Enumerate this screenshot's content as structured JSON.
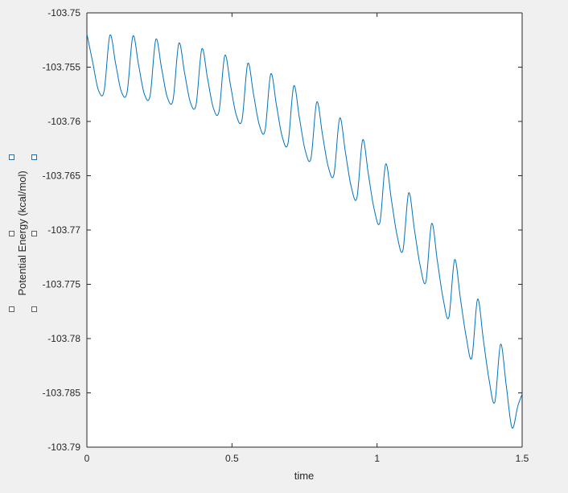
{
  "chart_data": {
    "type": "line",
    "x_label": "time",
    "y_label": "Potential Energy (kcal/mol)",
    "x": [
      0,
      0.0198,
      0.0396,
      0.0594,
      0.0792,
      0.099,
      0.1188,
      0.1386,
      0.1584,
      0.1782,
      0.198,
      0.2178,
      0.2376,
      0.2574,
      0.2772,
      0.297,
      0.3168,
      0.3366,
      0.3564,
      0.3762,
      0.396,
      0.4158,
      0.4356,
      0.4554,
      0.4752,
      0.495,
      0.5148,
      0.5346,
      0.5544,
      0.5742,
      0.594,
      0.6138,
      0.6336,
      0.6534,
      0.6732,
      0.693,
      0.7128,
      0.7326,
      0.7524,
      0.7722,
      0.792,
      0.8118,
      0.8316,
      0.8514,
      0.8712,
      0.891,
      0.9108,
      0.9306,
      0.9504,
      0.9702,
      0.99,
      1.0098,
      1.0296,
      1.0494,
      1.0692,
      1.089,
      1.1088,
      1.1286,
      1.1484,
      1.1682,
      1.188,
      1.2078,
      1.2276,
      1.2474,
      1.2672,
      1.287,
      1.3068,
      1.3266,
      1.3464,
      1.3662,
      1.386,
      1.4058,
      1.4256,
      1.4454,
      1.4652,
      1.485,
      1.5
    ],
    "series": [
      {
        "color": "#0072bd",
        "values": [
          -103.75193,
          -103.75452,
          -103.75711,
          -103.75719,
          -103.75207,
          -103.75467,
          -103.75726,
          -103.7573,
          -103.75215,
          -103.75481,
          -103.75748,
          -103.75763,
          -103.75244,
          -103.75511,
          -103.75778,
          -103.758,
          -103.75281,
          -103.75552,
          -103.75822,
          -103.75848,
          -103.75333,
          -103.75604,
          -103.75874,
          -103.75907,
          -103.75393,
          -103.75667,
          -103.75941,
          -103.75985,
          -103.75467,
          -103.75748,
          -103.7603,
          -103.76085,
          -103.75563,
          -103.75852,
          -103.76141,
          -103.76204,
          -103.75674,
          -103.7597,
          -103.76267,
          -103.76341,
          -103.75822,
          -103.76119,
          -103.76415,
          -103.76489,
          -103.7597,
          -103.76285,
          -103.766,
          -103.76704,
          -103.7617,
          -103.76489,
          -103.76807,
          -103.7693,
          -103.76393,
          -103.76722,
          -103.77052,
          -103.77189,
          -103.76659,
          -103.76993,
          -103.77326,
          -103.77478,
          -103.76941,
          -103.77285,
          -103.7763,
          -103.77804,
          -103.77274,
          -103.77626,
          -103.77978,
          -103.78178,
          -103.77637,
          -103.78007,
          -103.78378,
          -103.78585,
          -103.78052,
          -103.78437,
          -103.78822,
          -103.78622,
          -103.78511
        ]
      }
    ],
    "xlim": [
      0,
      1.5
    ],
    "xticks": [
      0,
      0.5,
      1,
      1.5
    ],
    "ylim": [
      -103.79,
      -103.75
    ],
    "yticks": [
      -103.79,
      -103.785,
      -103.78,
      -103.775,
      -103.77,
      -103.765,
      -103.76,
      -103.755,
      -103.75
    ],
    "grid": false,
    "box": true
  }
}
